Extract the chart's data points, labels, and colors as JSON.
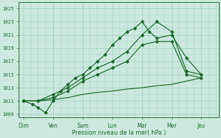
{
  "bg_color": "#cce8df",
  "grid_color": "#99ccbb",
  "line_color": "#1a6b2a",
  "xlabel": "Pression niveau de la mer( hPa )",
  "ylim": [
    1008.5,
    1026
  ],
  "yticks": [
    1009,
    1011,
    1013,
    1015,
    1017,
    1019,
    1021,
    1023,
    1025
  ],
  "x_labels": [
    "Dim",
    "Ven",
    "Sam",
    "Lun",
    "Mar",
    "Mer",
    "Jeu"
  ],
  "x_positions": [
    0,
    1,
    2,
    3,
    4,
    5,
    6
  ],
  "xlim": [
    -0.15,
    6.6
  ],
  "line_flat": {
    "x": [
      0,
      0.5,
      1,
      1.5,
      2,
      2.5,
      3,
      3.5,
      4,
      4.5,
      5,
      5.5,
      6
    ],
    "y": [
      1011,
      1011,
      1011.2,
      1011.5,
      1012,
      1012.3,
      1012.5,
      1012.8,
      1013,
      1013.3,
      1013.5,
      1014,
      1014.5
    ]
  },
  "line_mid": {
    "x": [
      0,
      0.5,
      1,
      1.5,
      2,
      2.5,
      3,
      3.5,
      4,
      4.5,
      5,
      5.5,
      6
    ],
    "y": [
      1011,
      1011,
      1011.5,
      1012.5,
      1014,
      1015,
      1016,
      1017,
      1019.5,
      1020,
      1020,
      1015,
      1014.5
    ]
  },
  "line_upper": {
    "x": [
      0,
      0.5,
      1,
      1.5,
      2,
      2.5,
      3,
      3.5,
      4,
      4.5,
      5,
      5.5,
      6
    ],
    "y": [
      1011,
      1011,
      1012,
      1013,
      1014.5,
      1016,
      1017,
      1018.5,
      1021,
      1023,
      1021.5,
      1015.5,
      1015
    ]
  },
  "line_peak": {
    "x": [
      0,
      0.3,
      0.5,
      0.75,
      1.0,
      1.25,
      1.5,
      1.75,
      2.0,
      2.25,
      2.5,
      2.75,
      3.0,
      3.25,
      3.5,
      3.75,
      4.0,
      4.25,
      4.5,
      5.0,
      5.5,
      6.0
    ],
    "y": [
      1011,
      1010.5,
      1010,
      1009.2,
      1011,
      1012.5,
      1013.5,
      1014.5,
      1015,
      1016,
      1017,
      1018,
      1019.5,
      1020.5,
      1021.5,
      1022,
      1023,
      1021.5,
      1020.5,
      1021,
      1017.5,
      1015
    ]
  }
}
